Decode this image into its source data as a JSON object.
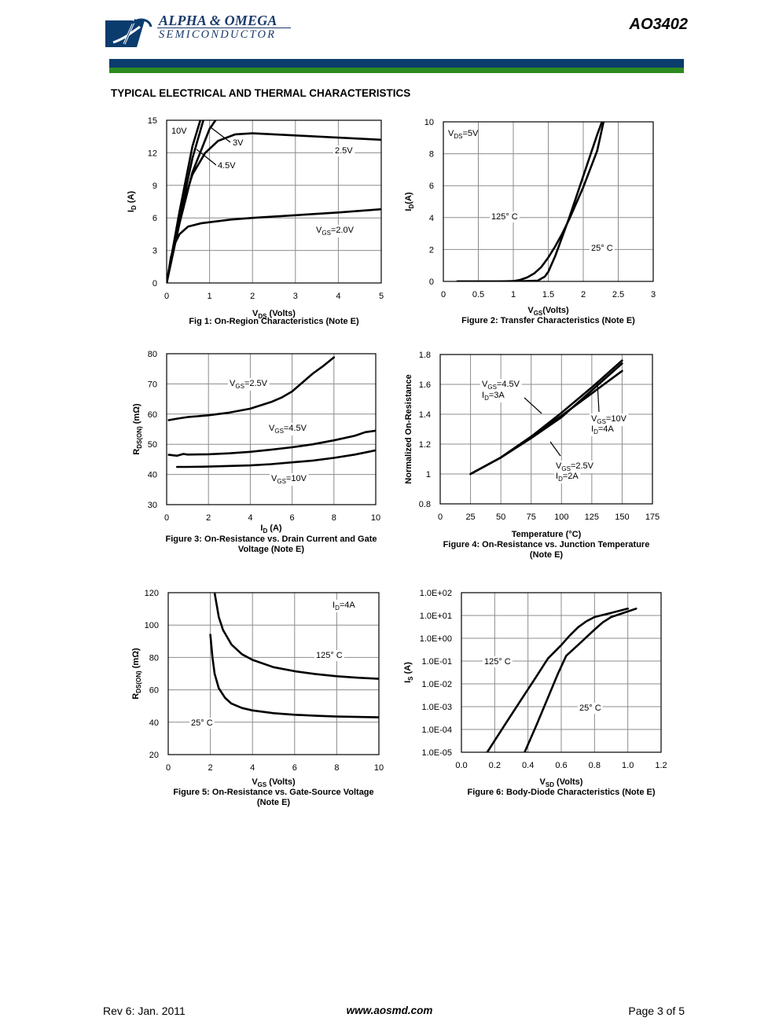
{
  "header": {
    "company": "ALPHA & OMEGA",
    "division": "SEMICONDUCTOR",
    "part_number": "AO3402",
    "logo_icon": "ao-logo-icon",
    "brand_colors": {
      "blue": "#0b3c6e",
      "green": "#2d8a1e"
    }
  },
  "section_title": "TYPICAL ELECTRICAL AND THERMAL CHARACTERISTICS",
  "footer": {
    "revision": "Rev 6: Jan. 2011",
    "website": "www.aosmd.com",
    "page": "Page 3 of 5"
  },
  "chart_data": [
    {
      "id": "fig1",
      "type": "line",
      "caption": "Fig 1: On-Region Characteristics (Note E)",
      "xlabel_main": "V",
      "xlabel_sub": "DS",
      "xlabel_rest": " (Volts)",
      "ylabel_main": "I",
      "ylabel_sub": "D",
      "ylabel_rest": " (A)",
      "xlim": [
        0,
        5
      ],
      "ylim": [
        0,
        15
      ],
      "x_ticks": [
        "0",
        "1",
        "2",
        "3",
        "4",
        "5"
      ],
      "y_ticks": [
        "0",
        "3",
        "6",
        "9",
        "12",
        "15"
      ],
      "grid": true,
      "series": [
        {
          "name": "10V",
          "x": [
            0,
            0.3,
            0.6,
            0.9
          ],
          "y": [
            0,
            6.6,
            12.6,
            16.5
          ]
        },
        {
          "name": "4.5V",
          "x": [
            0,
            0.3,
            0.6,
            1.0
          ],
          "y": [
            0,
            6.0,
            11.5,
            17
          ]
        },
        {
          "name": "3V",
          "x": [
            0,
            0.3,
            0.6,
            1.0,
            1.4
          ],
          "y": [
            0,
            5.5,
            10.2,
            14.2,
            16.5
          ]
        },
        {
          "name": "2.5V",
          "x": [
            0,
            0.2,
            0.4,
            0.6,
            0.9,
            1.2,
            1.6,
            2.0,
            3.0,
            4.0,
            5.0
          ],
          "y": [
            0,
            4.0,
            7.5,
            10.0,
            12.0,
            13.1,
            13.7,
            13.8,
            13.6,
            13.4,
            13.2
          ]
        },
        {
          "name": "2.0V",
          "x": [
            0,
            0.1,
            0.2,
            0.3,
            0.5,
            0.8,
            1.0,
            1.5,
            2.0,
            3.0,
            4.0,
            5.0
          ],
          "y": [
            0,
            2.4,
            3.7,
            4.5,
            5.2,
            5.5,
            5.6,
            5.85,
            6.0,
            6.25,
            6.5,
            6.8
          ]
        }
      ],
      "labels": [
        {
          "main": "10V",
          "sub": "",
          "rest": ""
        },
        {
          "main": "3V",
          "sub": "",
          "rest": ""
        },
        {
          "main": "4.5V",
          "sub": "",
          "rest": ""
        },
        {
          "main": "2.5V",
          "sub": "",
          "rest": ""
        },
        {
          "main": "V",
          "sub": "GS",
          "rest": "=2.0V"
        }
      ]
    },
    {
      "id": "fig2",
      "type": "line",
      "caption": "Figure 2: Transfer Characteristics (Note E)",
      "xlabel_main": "V",
      "xlabel_sub": "GS",
      "xlabel_rest": "(Volts)",
      "ylabel_main": "I",
      "ylabel_sub": "D",
      "ylabel_rest": "(A)",
      "xlim": [
        0,
        3
      ],
      "ylim": [
        0,
        10
      ],
      "x_ticks": [
        "0",
        "0.5",
        "1",
        "1.5",
        "2",
        "2.5",
        "3"
      ],
      "y_ticks": [
        "0",
        "2",
        "4",
        "6",
        "8",
        "10"
      ],
      "grid": true,
      "series": [
        {
          "name": "125° C",
          "x": [
            0.2,
            0.8,
            1.0,
            1.1,
            1.2,
            1.3,
            1.4,
            1.5,
            1.6,
            1.7,
            1.8,
            2.0,
            2.2,
            2.3
          ],
          "y": [
            0,
            0,
            0.02,
            0.1,
            0.25,
            0.5,
            0.9,
            1.5,
            2.2,
            3.0,
            3.9,
            5.9,
            8.2,
            10.2
          ]
        },
        {
          "name": "25° C",
          "x": [
            0.2,
            1.0,
            1.35,
            1.45,
            1.5,
            1.6,
            1.7,
            1.8,
            1.9,
            2.0,
            2.1,
            2.2,
            2.3
          ],
          "y": [
            0,
            0,
            0.05,
            0.3,
            0.6,
            1.6,
            2.8,
            4.0,
            5.3,
            6.6,
            7.9,
            9.2,
            10.4
          ]
        }
      ],
      "labels": [
        {
          "main": "V",
          "sub": "DS",
          "rest": "=5V"
        },
        {
          "main": "125° C",
          "sub": "",
          "rest": ""
        },
        {
          "main": "25° C",
          "sub": "",
          "rest": ""
        }
      ]
    },
    {
      "id": "fig3",
      "type": "line",
      "caption": "Figure 3: On-Resistance vs. Drain Current and Gate Voltage (Note E)",
      "caption_lines": [
        "Figure 3: On-Resistance vs. Drain Current and Gate",
        "Voltage (Note E)"
      ],
      "xlabel_main": "I",
      "xlabel_sub": "D",
      "xlabel_rest": " (A)",
      "ylabel_main": "R",
      "ylabel_sub": "DS(ON)",
      "ylabel_rest": " (mΩ)",
      "xlim": [
        0,
        10
      ],
      "ylim": [
        30,
        80
      ],
      "x_ticks": [
        "0",
        "2",
        "4",
        "6",
        "8",
        "10"
      ],
      "y_ticks": [
        "30",
        "40",
        "50",
        "60",
        "70",
        "80"
      ],
      "grid": true,
      "series": [
        {
          "name": "VGS=2.5V",
          "x": [
            0.1,
            0.5,
            1,
            1.5,
            2,
            3,
            4,
            5,
            5.5,
            6,
            6.5,
            7,
            7.5,
            8
          ],
          "y": [
            58,
            58.5,
            59,
            59.3,
            59.6,
            60.5,
            61.8,
            64,
            65.5,
            67.5,
            70.5,
            73.5,
            76,
            78.8
          ]
        },
        {
          "name": "VGS=4.5V",
          "x": [
            0.1,
            0.5,
            0.8,
            1,
            2,
            3,
            4,
            5,
            6,
            7,
            8,
            9,
            9.5,
            10
          ],
          "y": [
            46.5,
            46.2,
            46.8,
            46.6,
            46.7,
            47,
            47.5,
            48.2,
            49,
            50,
            51.3,
            52.8,
            54,
            54.5
          ]
        },
        {
          "name": "VGS=10V",
          "x": [
            0.5,
            1,
            2,
            3,
            4,
            5,
            6,
            7,
            8,
            9,
            10
          ],
          "y": [
            42.5,
            42.5,
            42.6,
            42.8,
            43,
            43.4,
            44,
            44.6,
            45.5,
            46.6,
            48
          ]
        }
      ],
      "labels": [
        {
          "main": "V",
          "sub": "GS",
          "rest": "=2.5V"
        },
        {
          "main": "V",
          "sub": "GS",
          "rest": "=4.5V"
        },
        {
          "main": "V",
          "sub": "GS",
          "rest": "=10V"
        }
      ]
    },
    {
      "id": "fig4",
      "type": "line",
      "caption": "Figure 4: On-Resistance vs. Junction Temperature (Note E)",
      "caption_lines": [
        "Figure 4: On-Resistance vs. Junction Temperature",
        "(Note E)"
      ],
      "xlabel_main": "Temperature (°C)",
      "xlabel_sub": "",
      "xlabel_rest": "",
      "ylabel_main": "Normalized On-Resistance",
      "ylabel_sub": "",
      "ylabel_rest": "",
      "xlim": [
        0,
        175
      ],
      "ylim": [
        0.8,
        1.8
      ],
      "x_ticks": [
        "0",
        "25",
        "50",
        "75",
        "100",
        "125",
        "150",
        "175"
      ],
      "y_ticks": [
        "0.8",
        "1",
        "1.2",
        "1.4",
        "1.6",
        "1.8"
      ],
      "grid": true,
      "series": [
        {
          "name": "VGS=4.5V, ID=3A",
          "x": [
            25,
            50,
            75,
            100,
            125,
            150
          ],
          "y": [
            1.0,
            1.11,
            1.25,
            1.41,
            1.58,
            1.76
          ]
        },
        {
          "name": "VGS=10V, ID=4A",
          "x": [
            25,
            50,
            75,
            100,
            125,
            150
          ],
          "y": [
            1.0,
            1.11,
            1.25,
            1.39,
            1.54,
            1.69
          ]
        },
        {
          "name": "VGS=2.5V, ID=2A",
          "x": [
            25,
            50,
            75,
            100,
            125,
            150
          ],
          "y": [
            1.0,
            1.11,
            1.24,
            1.38,
            1.56,
            1.74
          ]
        }
      ],
      "labels": [
        {
          "main": "V",
          "sub": "GS",
          "rest": "=4.5V"
        },
        {
          "main": "I",
          "sub": "D",
          "rest": "=3A"
        },
        {
          "main": "V",
          "sub": "GS",
          "rest": "=10V"
        },
        {
          "main": "I",
          "sub": "D",
          "rest": "=4A"
        },
        {
          "main": "V",
          "sub": "GS",
          "rest": "=2.5V"
        },
        {
          "main": "I",
          "sub": "D",
          "rest": "=2A"
        }
      ]
    },
    {
      "id": "fig5",
      "type": "line",
      "caption": "Figure 5: On-Resistance vs. Gate-Source Voltage (Note E)",
      "caption_lines": [
        "Figure 5: On-Resistance vs. Gate-Source Voltage",
        "(Note E)"
      ],
      "xlabel_main": "V",
      "xlabel_sub": "GS",
      "xlabel_rest": " (Volts)",
      "ylabel_main": "R",
      "ylabel_sub": "DS(ON)",
      "ylabel_rest": " (mΩ)",
      "xlim": [
        0,
        10
      ],
      "ylim": [
        20,
        120
      ],
      "x_ticks": [
        "0",
        "2",
        "4",
        "6",
        "8",
        "10"
      ],
      "y_ticks": [
        "20",
        "40",
        "60",
        "80",
        "100",
        "120"
      ],
      "grid": true,
      "series": [
        {
          "name": "125° C",
          "x": [
            2.2,
            2.4,
            2.6,
            3.0,
            3.5,
            4.0,
            5.0,
            6.0,
            7.0,
            8.0,
            9.0,
            10.0
          ],
          "y": [
            120,
            105,
            97,
            88,
            82,
            78.5,
            74,
            71.5,
            69.7,
            68.4,
            67.5,
            66.8
          ]
        },
        {
          "name": "25° C",
          "x": [
            2.0,
            2.1,
            2.2,
            2.4,
            2.7,
            3.0,
            3.5,
            4.0,
            5.0,
            6.0,
            7.0,
            8.0,
            10.0
          ],
          "y": [
            94,
            80,
            70,
            61,
            55,
            51.5,
            48.8,
            47.3,
            45.6,
            44.6,
            44.0,
            43.5,
            43.0
          ]
        }
      ],
      "labels": [
        {
          "main": "I",
          "sub": "D",
          "rest": "=4A"
        },
        {
          "main": "125° C",
          "sub": "",
          "rest": ""
        },
        {
          "main": "25° C",
          "sub": "",
          "rest": ""
        }
      ]
    },
    {
      "id": "fig6",
      "type": "line",
      "caption": "Figure 6: Body-Diode Characteristics (Note E)",
      "xlabel_main": "V",
      "xlabel_sub": "SD",
      "xlabel_rest": " (Volts)",
      "ylabel_main": "I",
      "ylabel_sub": "S",
      "ylabel_rest": " (A)",
      "xlim": [
        0,
        1.2
      ],
      "ylim": [
        -5,
        2
      ],
      "y_scale": "log",
      "x_ticks": [
        "0.0",
        "0.2",
        "0.4",
        "0.6",
        "0.8",
        "1.0",
        "1.2"
      ],
      "y_ticks": [
        "1.0E-05",
        "1.0E-04",
        "1.0E-03",
        "1.0E-02",
        "1.0E-01",
        "1.0E+00",
        "1.0E+01",
        "1.0E+02"
      ],
      "grid": true,
      "series": [
        {
          "name": "125° C",
          "x": [
            0.155,
            0.25,
            0.35,
            0.45,
            0.52,
            0.6,
            0.65,
            0.7,
            0.75,
            0.8,
            0.9,
            1.0
          ],
          "y": [
            1e-05,
            0.00012,
            0.0016,
            0.021,
            0.13,
            0.5,
            1.3,
            3.0,
            5.5,
            8.5,
            13.0,
            20.0
          ]
        },
        {
          "name": "25° C",
          "x": [
            0.38,
            0.45,
            0.52,
            0.58,
            0.63,
            0.7,
            0.75,
            0.8,
            0.85,
            0.9,
            1.0,
            1.05
          ],
          "y": [
            1e-05,
            0.00015,
            0.0025,
            0.028,
            0.17,
            0.5,
            1.1,
            2.4,
            5.0,
            8.5,
            15.0,
            20.0
          ]
        }
      ],
      "labels": [
        {
          "main": "125° C",
          "sub": "",
          "rest": ""
        },
        {
          "main": "25° C",
          "sub": "",
          "rest": ""
        }
      ]
    }
  ]
}
